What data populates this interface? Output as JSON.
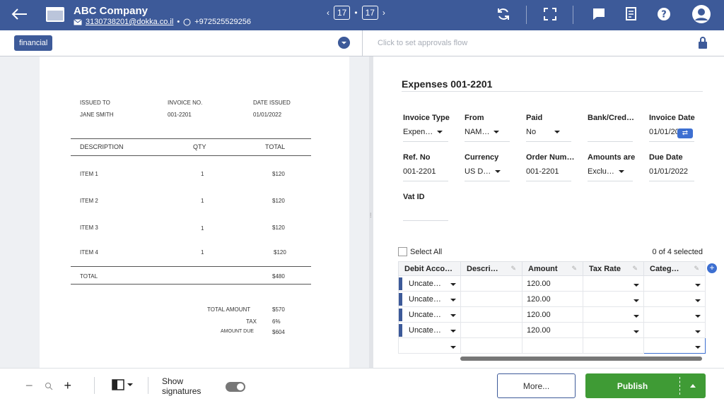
{
  "header": {
    "company": "ABC Company",
    "email": "3130738201@dokka.co.il",
    "phone": "+972525529256",
    "separator": "•",
    "page_current": "17",
    "page_total": "17",
    "page_sep": "•"
  },
  "subbar": {
    "tag": "financial",
    "approvals_placeholder": "Click to set approvals flow"
  },
  "invoice": {
    "issued_to_label": "ISSUED TO",
    "issued_to": "JANE SMITH",
    "invoice_no_label": "INVOICE NO.",
    "invoice_no": "001-2201",
    "date_issued_label": "DATE ISSUED",
    "date_issued": "01/01/2022",
    "col_description": "DESCRIPTION",
    "col_qty": "QTY",
    "col_total": "TOTAL",
    "items": [
      {
        "desc": "ITEM 1",
        "qty": "1",
        "total": "$120"
      },
      {
        "desc": "ITEM 2",
        "qty": "1",
        "total": "$120"
      },
      {
        "desc": "ITEM 3",
        "qty": "1",
        "total": "$120"
      },
      {
        "desc": "ITEM 4",
        "qty": "1",
        "total": "$120"
      }
    ],
    "total_label": "TOTAL",
    "total": "$480",
    "total_amount_label": "TOTAL AMOUNT",
    "total_amount": "$570",
    "tax_label": "TAX",
    "tax": "6%",
    "amount_due_label": "AMOUNT DUE",
    "amount_due": "$604"
  },
  "form": {
    "title": "Expenses 001-2201",
    "invoice_type_label": "Invoice Type",
    "invoice_type": "Expen…",
    "from_label": "From",
    "from": "NAM…",
    "paid_label": "Paid",
    "paid": "No",
    "bank_label": "Bank/Cred…",
    "bank": "",
    "invoice_date_label": "Invoice Date",
    "invoice_date": "01/01/20",
    "ref_label": "Ref. No",
    "ref": "001-2201",
    "currency_label": "Currency",
    "currency": "US D…",
    "order_label": "Order Num…",
    "order": "001-2201",
    "amounts_label": "Amounts are",
    "amounts": "Exclu…",
    "due_label": "Due Date",
    "due": "01/01/2022",
    "vat_label": "Vat ID",
    "vat": ""
  },
  "grid": {
    "select_all": "Select All",
    "selected_count": "0 of 4 selected",
    "columns": [
      "Debit Acco…",
      "Descri…",
      "Amount",
      "Tax Rate",
      "Categ…"
    ],
    "rows": [
      {
        "account": "Uncate…",
        "desc": "",
        "amount": "120.00",
        "tax": "",
        "category": ""
      },
      {
        "account": "Uncate…",
        "desc": "",
        "amount": "120.00",
        "tax": "",
        "category": ""
      },
      {
        "account": "Uncate…",
        "desc": "",
        "amount": "120.00",
        "tax": "",
        "category": ""
      },
      {
        "account": "Uncate…",
        "desc": "",
        "amount": "120.00",
        "tax": "",
        "category": ""
      }
    ]
  },
  "bottom": {
    "show_signatures": "Show signatures",
    "more": "More...",
    "publish": "Publish",
    "zoom_out": "−",
    "zoom_in": "+"
  },
  "colors": {
    "primary": "#3d5a99",
    "publish": "#3f9b35",
    "accent": "#3d6fd1"
  }
}
